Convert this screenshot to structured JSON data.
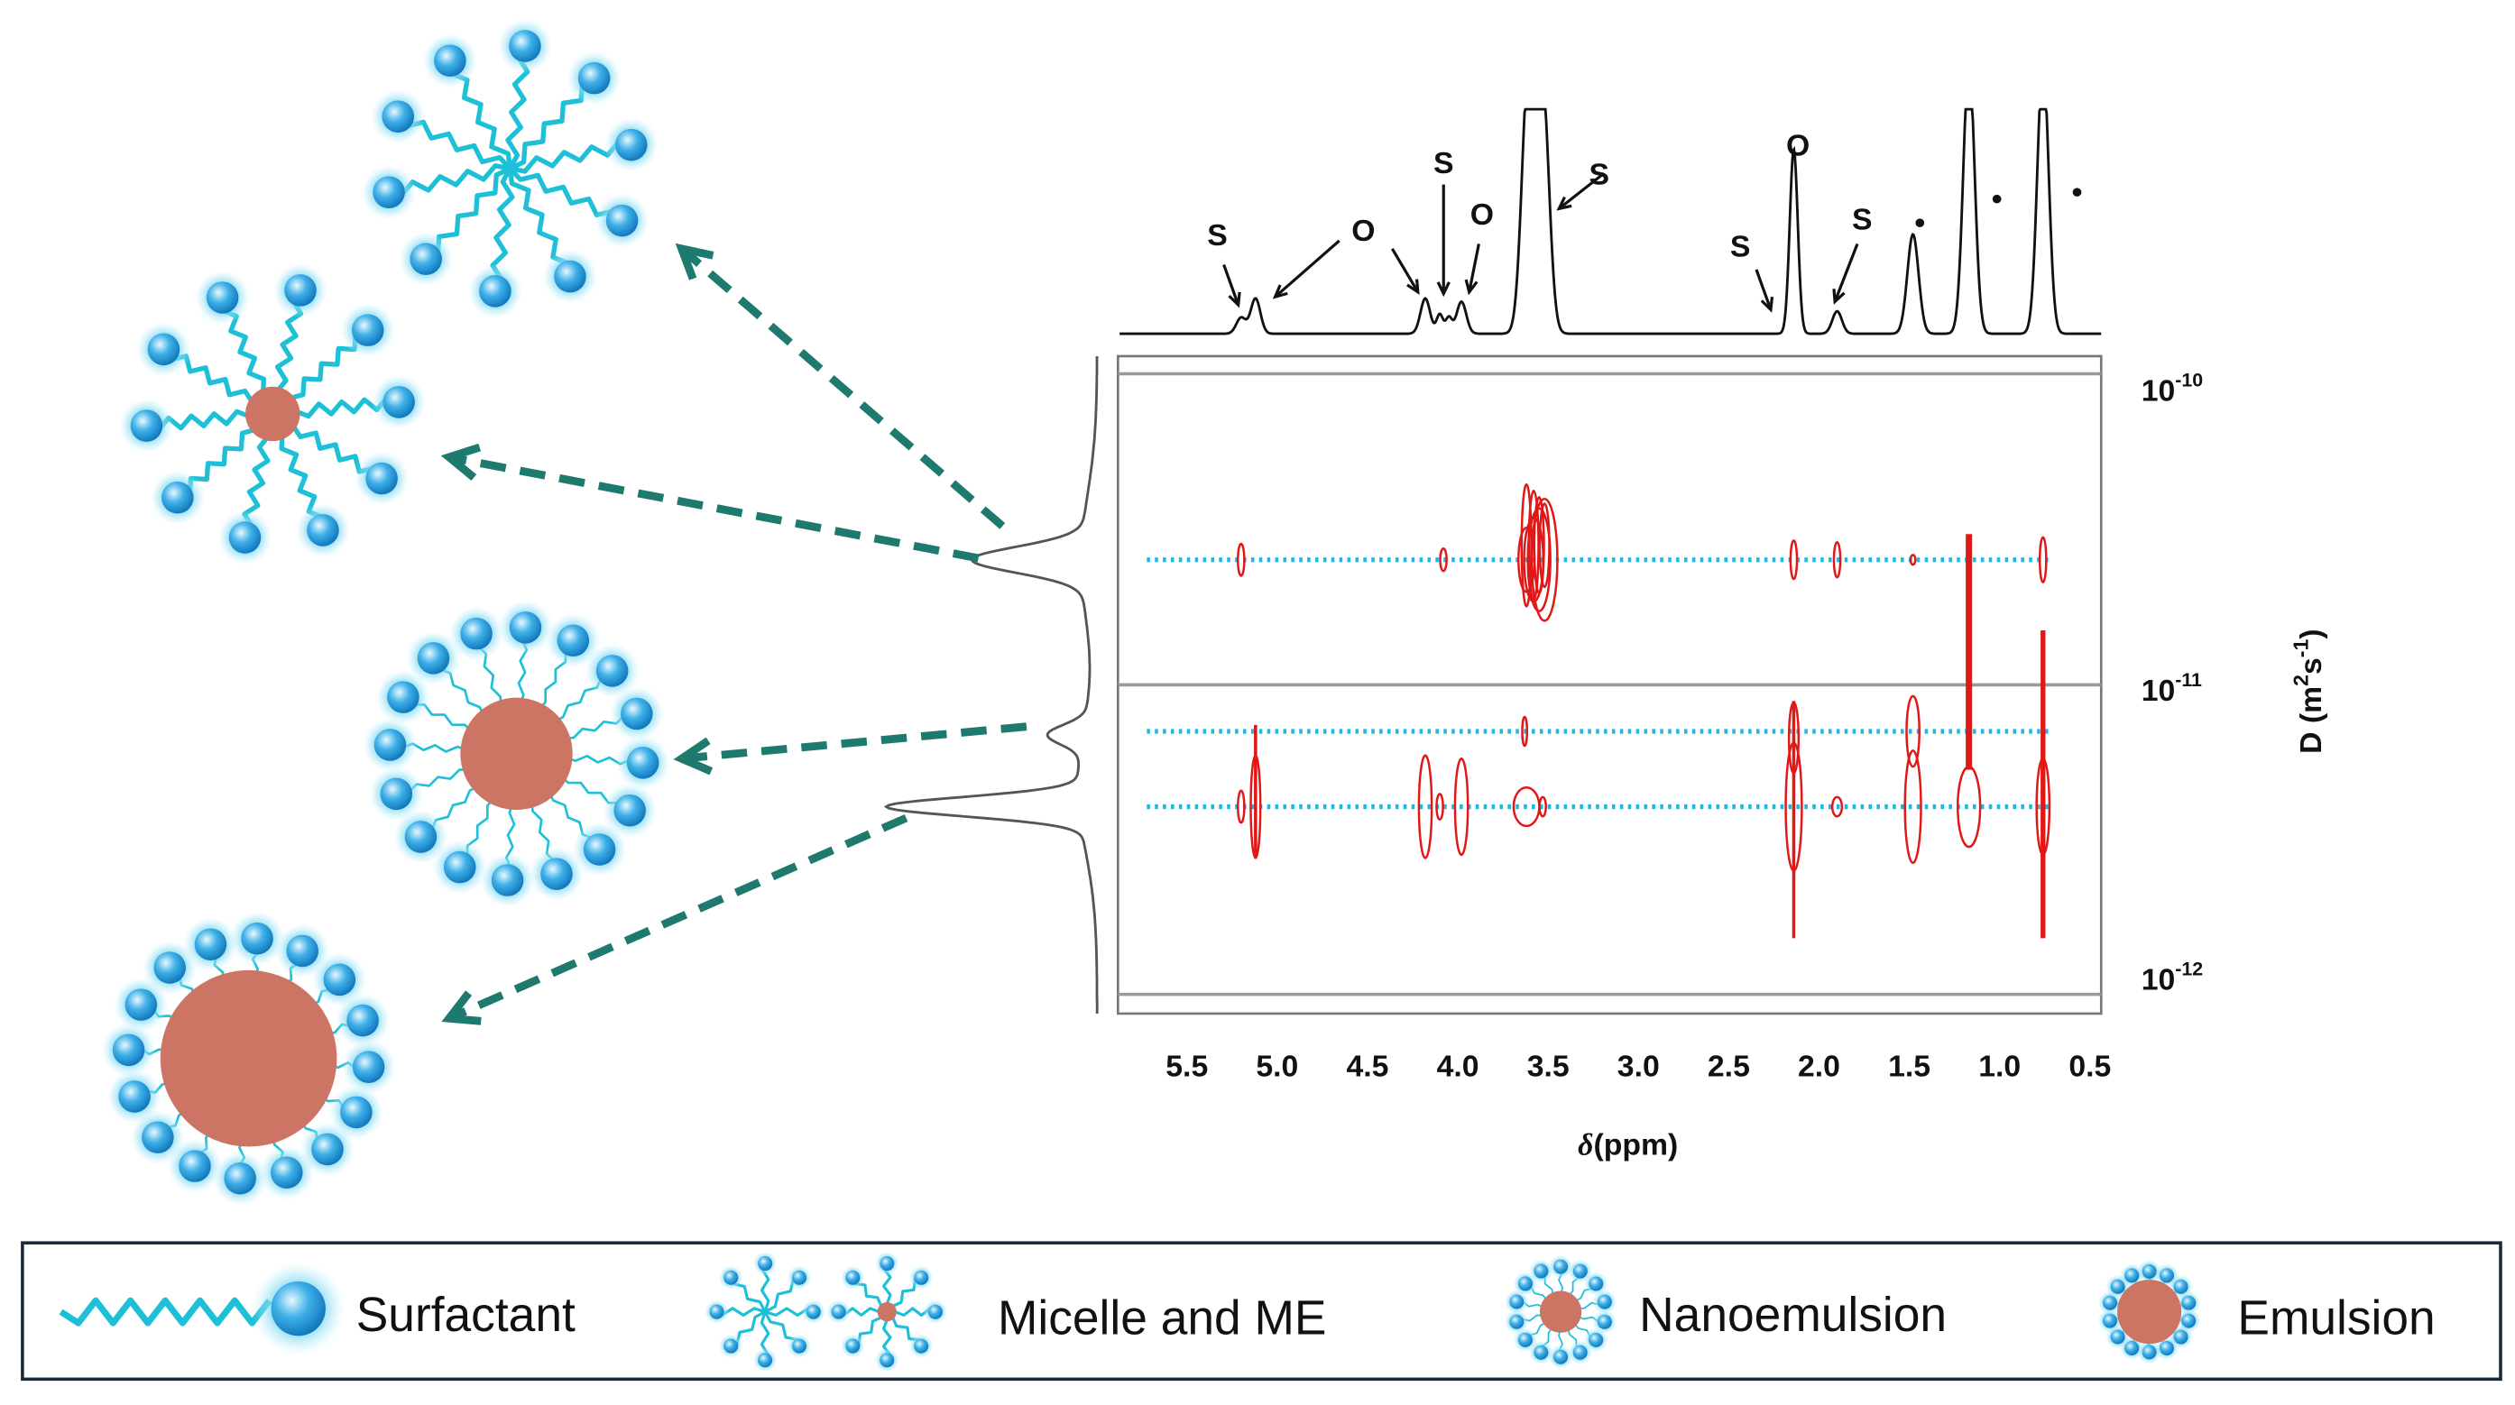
{
  "spectrum": {
    "peak_labels": [
      "S",
      "O",
      "S",
      "O",
      "S",
      "S",
      "O",
      "S",
      "•",
      "•",
      "•"
    ]
  },
  "dosy": {
    "x_ticks": [
      "5.5",
      "5.0",
      "4.5",
      "4.0",
      "3.5",
      "3.0",
      "2.5",
      "2.0",
      "1.5",
      "1.0",
      "0.5"
    ],
    "x_label": {
      "symbol": "δ",
      "unit": "(ppm)"
    },
    "y_ticks": [
      {
        "base": "10",
        "exponent": "-10"
      },
      {
        "base": "10",
        "exponent": "-11"
      },
      {
        "base": "10",
        "exponent": "-12"
      }
    ],
    "y_label": {
      "text": "D (m",
      "sup1": "2",
      "mid": "s",
      "sup2": "-1",
      "end": ")"
    }
  },
  "legend": [
    "Surfactant",
    "Micelle and ME",
    "Nanoemulsion",
    "Emulsion"
  ]
}
